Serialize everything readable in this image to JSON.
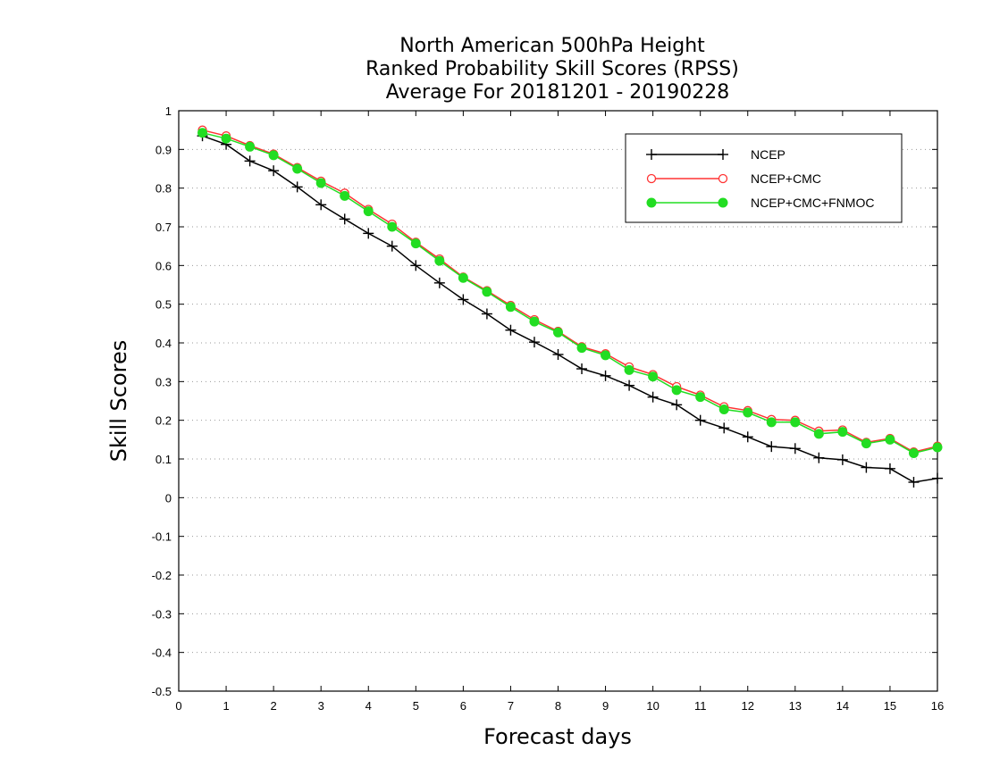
{
  "chart_data": {
    "type": "line",
    "title_lines": [
      "North American 500hPa Height",
      "Ranked Probability Skill Scores (RPSS)",
      "Average For 20181201 - 20190228"
    ],
    "xlabel": "Forecast days",
    "ylabel": "Skill Scores",
    "xlim": [
      0,
      16
    ],
    "ylim": [
      -0.5,
      1
    ],
    "xticks": [
      0,
      1,
      2,
      3,
      4,
      5,
      6,
      7,
      8,
      9,
      10,
      11,
      12,
      13,
      14,
      15,
      16
    ],
    "xtick_labels": [
      "0",
      "1",
      "2",
      "3",
      "4",
      "5",
      "6",
      "7",
      "8",
      "9",
      "10",
      "11",
      "12",
      "13",
      "14",
      "15",
      "16"
    ],
    "yticks": [
      -0.5,
      -0.4,
      -0.3,
      -0.2,
      -0.1,
      0,
      0.1,
      0.2,
      0.3,
      0.4,
      0.5,
      0.6,
      0.7,
      0.8,
      0.9,
      1
    ],
    "ytick_labels": [
      "-0.5",
      "-0.4",
      "-0.3",
      "-0.2",
      "-0.1",
      "0",
      "0.1",
      "0.2",
      "0.3",
      "0.4",
      "0.5",
      "0.6",
      "0.7",
      "0.8",
      "0.9",
      "1"
    ],
    "grid": "horizontal dotted",
    "legend_position": "top-right",
    "x": [
      0.5,
      1,
      1.5,
      2,
      2.5,
      3,
      3.5,
      4,
      4.5,
      5,
      5.5,
      6,
      6.5,
      7,
      7.5,
      8,
      8.5,
      9,
      9.5,
      10,
      10.5,
      11,
      11.5,
      12,
      12.5,
      13,
      13.5,
      14,
      14.5,
      15,
      15.5,
      16
    ],
    "series": [
      {
        "name": "NCEP",
        "color": "#000000",
        "marker": "plus",
        "values": [
          0.935,
          0.913,
          0.87,
          0.845,
          0.803,
          0.757,
          0.72,
          0.683,
          0.65,
          0.6,
          0.555,
          0.512,
          0.475,
          0.433,
          0.402,
          0.37,
          0.333,
          0.315,
          0.29,
          0.26,
          0.24,
          0.2,
          0.18,
          0.157,
          0.132,
          0.127,
          0.103,
          0.098,
          0.078,
          0.075,
          0.04,
          0.05
        ]
      },
      {
        "name": "NCEP+CMC",
        "color": "#ff3333",
        "marker": "open-circle",
        "values": [
          0.95,
          0.935,
          0.91,
          0.888,
          0.853,
          0.818,
          0.787,
          0.745,
          0.707,
          0.66,
          0.617,
          0.57,
          0.535,
          0.497,
          0.46,
          0.43,
          0.39,
          0.372,
          0.338,
          0.318,
          0.287,
          0.265,
          0.235,
          0.225,
          0.202,
          0.2,
          0.172,
          0.175,
          0.143,
          0.153,
          0.118,
          0.133
        ]
      },
      {
        "name": "NCEP+CMC+FNMOC",
        "color": "#22dd22",
        "marker": "filled-circle",
        "values": [
          0.943,
          0.928,
          0.907,
          0.885,
          0.85,
          0.813,
          0.78,
          0.74,
          0.7,
          0.657,
          0.612,
          0.568,
          0.532,
          0.493,
          0.455,
          0.427,
          0.387,
          0.368,
          0.33,
          0.313,
          0.278,
          0.26,
          0.228,
          0.22,
          0.195,
          0.195,
          0.165,
          0.17,
          0.14,
          0.15,
          0.115,
          0.13
        ]
      }
    ]
  }
}
